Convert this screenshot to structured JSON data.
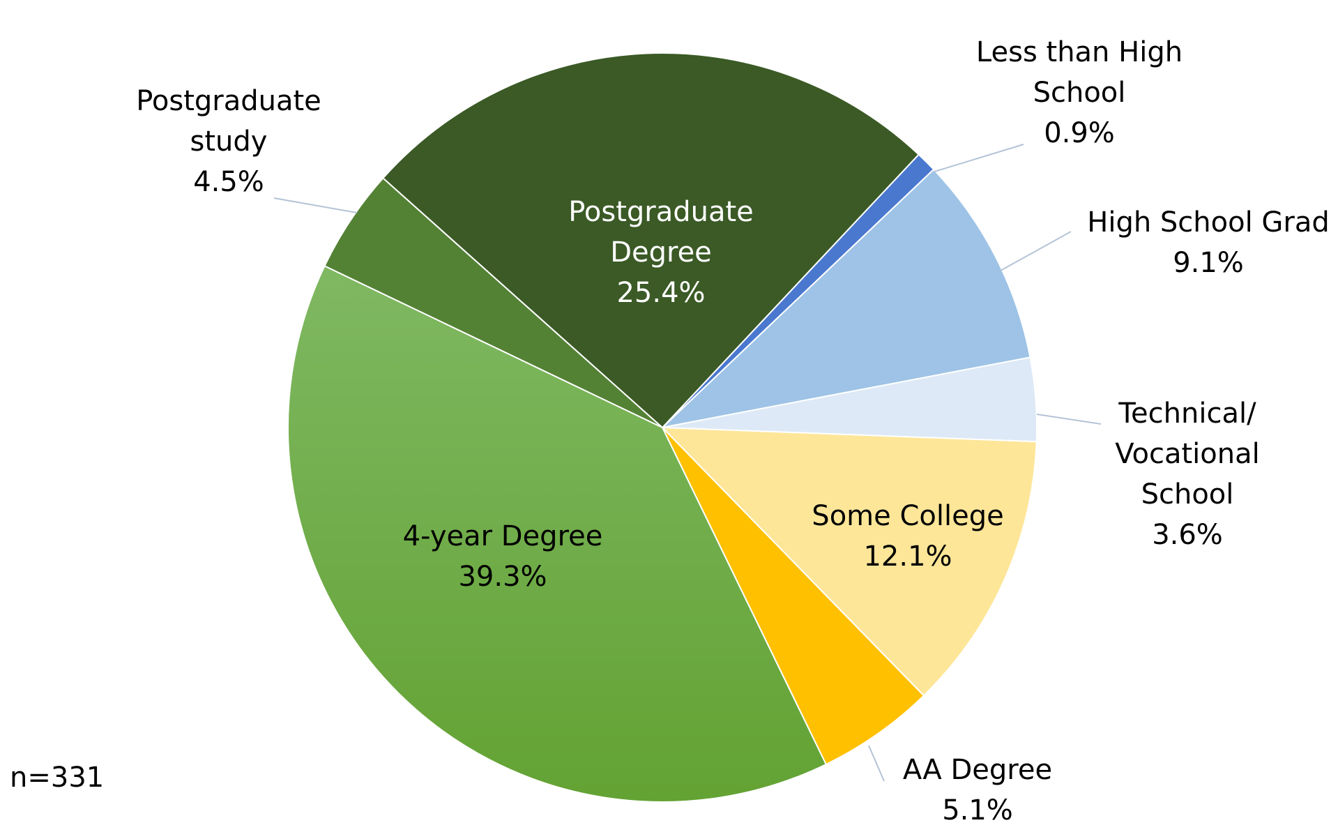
{
  "chart_data": {
    "type": "pie",
    "title": "",
    "start_angle_deg": 43.2,
    "direction": "clockwise",
    "slices": [
      {
        "label": "Less than High School",
        "value": 0.9,
        "value_label": "0.9%",
        "color": "#4a78cf",
        "label_placement": "outside",
        "label_lines": [
          "Less than High",
          "School"
        ]
      },
      {
        "label": "High School Grad",
        "value": 9.1,
        "value_label": "9.1%",
        "color": "#9ec3e6",
        "label_placement": "outside",
        "label_lines": [
          "High School Grad"
        ]
      },
      {
        "label": "Technical/ Vocational School",
        "value": 3.6,
        "value_label": "3.6%",
        "color": "#dde9f6",
        "label_placement": "outside",
        "label_lines": [
          "Technical/",
          "Vocational",
          "School"
        ]
      },
      {
        "label": "Some College",
        "value": 12.1,
        "value_label": "12.1%",
        "color": "#fee699",
        "label_placement": "inside",
        "label_lines": [
          "Some College"
        ]
      },
      {
        "label": "AA Degree",
        "value": 5.1,
        "value_label": "5.1%",
        "color": "#ffc000",
        "label_placement": "outside",
        "label_lines": [
          "AA Degree"
        ]
      },
      {
        "label": "4-year Degree",
        "value": 39.3,
        "value_label": "39.3%",
        "color": "#70ad47",
        "label_placement": "inside",
        "label_lines": [
          "4-year Degree"
        ]
      },
      {
        "label": "Postgraduate study",
        "value": 4.5,
        "value_label": "4.5%",
        "color": "#548235",
        "label_placement": "outside",
        "label_lines": [
          "Postgraduate",
          "study"
        ]
      },
      {
        "label": "Postgraduate Degree",
        "value": 25.4,
        "value_label": "25.4%",
        "color": "#3b5a26",
        "label_placement": "inside",
        "label_lines": [
          "Postgraduate",
          "Degree"
        ],
        "label_color": "#ffffff"
      }
    ],
    "legend": "none"
  },
  "note": "n=331"
}
